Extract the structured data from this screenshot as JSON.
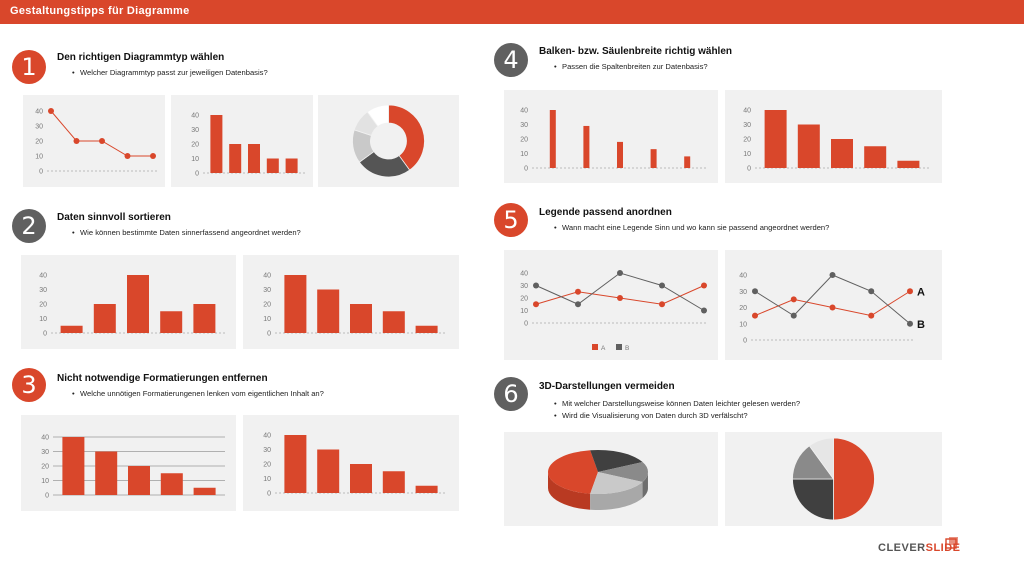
{
  "header": {
    "title": "Gestaltungstipps für Diagramme"
  },
  "colors": {
    "accent": "#d9472b",
    "gray": "#606060",
    "panel": "#f1f1f1"
  },
  "sections": [
    {
      "number": "1",
      "title": "Den richtigen Diagrammtyp wählen",
      "bullets": [
        "Welcher Diagrammtyp passt zur jeweiligen Datenbasis?"
      ]
    },
    {
      "number": "2",
      "title": "Daten sinnvoll sortieren",
      "bullets": [
        "Wie können bestimmte Daten sinnerfassend angeordnet werden?"
      ]
    },
    {
      "number": "3",
      "title": "Nicht notwendige Formatierungen entfernen",
      "bullets": [
        "Welche unnötigen Formatierungenen lenken vom eigentlichen Inhalt an?"
      ]
    },
    {
      "number": "4",
      "title": "Balken- bzw. Säulenbreite richtig wählen",
      "bullets": [
        "Passen die Spaltenbreiten zur Datenbasis?"
      ]
    },
    {
      "number": "5",
      "title": "Legende passend anordnen",
      "bullets": [
        "Wann macht eine Legende Sinn und wo kann sie passend angeordnet werden?"
      ]
    },
    {
      "number": "6",
      "title": "3D-Darstellungen vermeiden",
      "bullets": [
        "Mit welcher Darstellungsweise können Daten leichter gelesen werden?",
        "Wird die Visualisierung von Daten durch 3D verfälscht?"
      ]
    }
  ],
  "logo": {
    "part1": "CLEVER",
    "part2": "SLIDE"
  },
  "chart_data": [
    {
      "id": "s1-line",
      "type": "line",
      "yticks": [
        0,
        10,
        20,
        30,
        40
      ],
      "ylim": [
        0,
        40
      ],
      "values": [
        40,
        20,
        20,
        10,
        10
      ]
    },
    {
      "id": "s1-bar",
      "type": "bar",
      "yticks": [
        0,
        10,
        20,
        30,
        40
      ],
      "ylim": [
        0,
        40
      ],
      "values": [
        40,
        20,
        20,
        10,
        10
      ]
    },
    {
      "id": "s1-donut",
      "type": "pie",
      "values": [
        40,
        25,
        15,
        10,
        10
      ]
    },
    {
      "id": "s2-bar-unsorted",
      "type": "bar",
      "yticks": [
        0,
        10,
        20,
        30,
        40
      ],
      "ylim": [
        0,
        40
      ],
      "values": [
        5,
        20,
        40,
        15,
        20
      ]
    },
    {
      "id": "s2-bar-sorted",
      "type": "bar",
      "yticks": [
        0,
        10,
        20,
        30,
        40
      ],
      "ylim": [
        0,
        40
      ],
      "values": [
        40,
        30,
        20,
        15,
        5
      ]
    },
    {
      "id": "s3-bar-formatted",
      "type": "bar",
      "yticks": [
        0,
        10,
        20,
        30,
        40
      ],
      "ylim": [
        0,
        40
      ],
      "values": [
        40,
        30,
        20,
        15,
        5
      ],
      "grid": true
    },
    {
      "id": "s3-bar-clean",
      "type": "bar",
      "yticks": [
        0,
        10,
        20,
        30,
        40
      ],
      "ylim": [
        0,
        40
      ],
      "values": [
        40,
        30,
        20,
        15,
        5
      ],
      "grid": false
    },
    {
      "id": "s4-bar-thin",
      "type": "bar",
      "yticks": [
        0,
        10,
        20,
        30,
        40
      ],
      "ylim": [
        0,
        40
      ],
      "values": [
        40,
        29,
        18,
        13,
        8
      ]
    },
    {
      "id": "s4-bar-wide",
      "type": "bar",
      "yticks": [
        0,
        10,
        20,
        30,
        40
      ],
      "ylim": [
        0,
        40
      ],
      "values": [
        40,
        30,
        20,
        15,
        5
      ]
    },
    {
      "id": "s5-line-legend",
      "type": "line",
      "yticks": [
        0,
        10,
        20,
        30,
        40
      ],
      "ylim": [
        0,
        40
      ],
      "series": [
        {
          "name": "A",
          "values": [
            15,
            25,
            20,
            15,
            30
          ]
        },
        {
          "name": "B",
          "values": [
            30,
            15,
            40,
            30,
            10
          ]
        }
      ],
      "legend": "bottom"
    },
    {
      "id": "s5-line-labels",
      "type": "line",
      "yticks": [
        0,
        10,
        20,
        30,
        40
      ],
      "ylim": [
        0,
        40
      ],
      "series": [
        {
          "name": "A",
          "values": [
            15,
            25,
            20,
            15,
            30
          ]
        },
        {
          "name": "B",
          "values": [
            30,
            15,
            40,
            30,
            10
          ]
        }
      ],
      "legend": "direct-labels"
    },
    {
      "id": "s6-pie-3d",
      "type": "pie",
      "values": [
        45,
        20,
        15,
        20
      ]
    },
    {
      "id": "s6-pie-2d",
      "type": "pie",
      "values": [
        50,
        25,
        15,
        10
      ]
    }
  ]
}
